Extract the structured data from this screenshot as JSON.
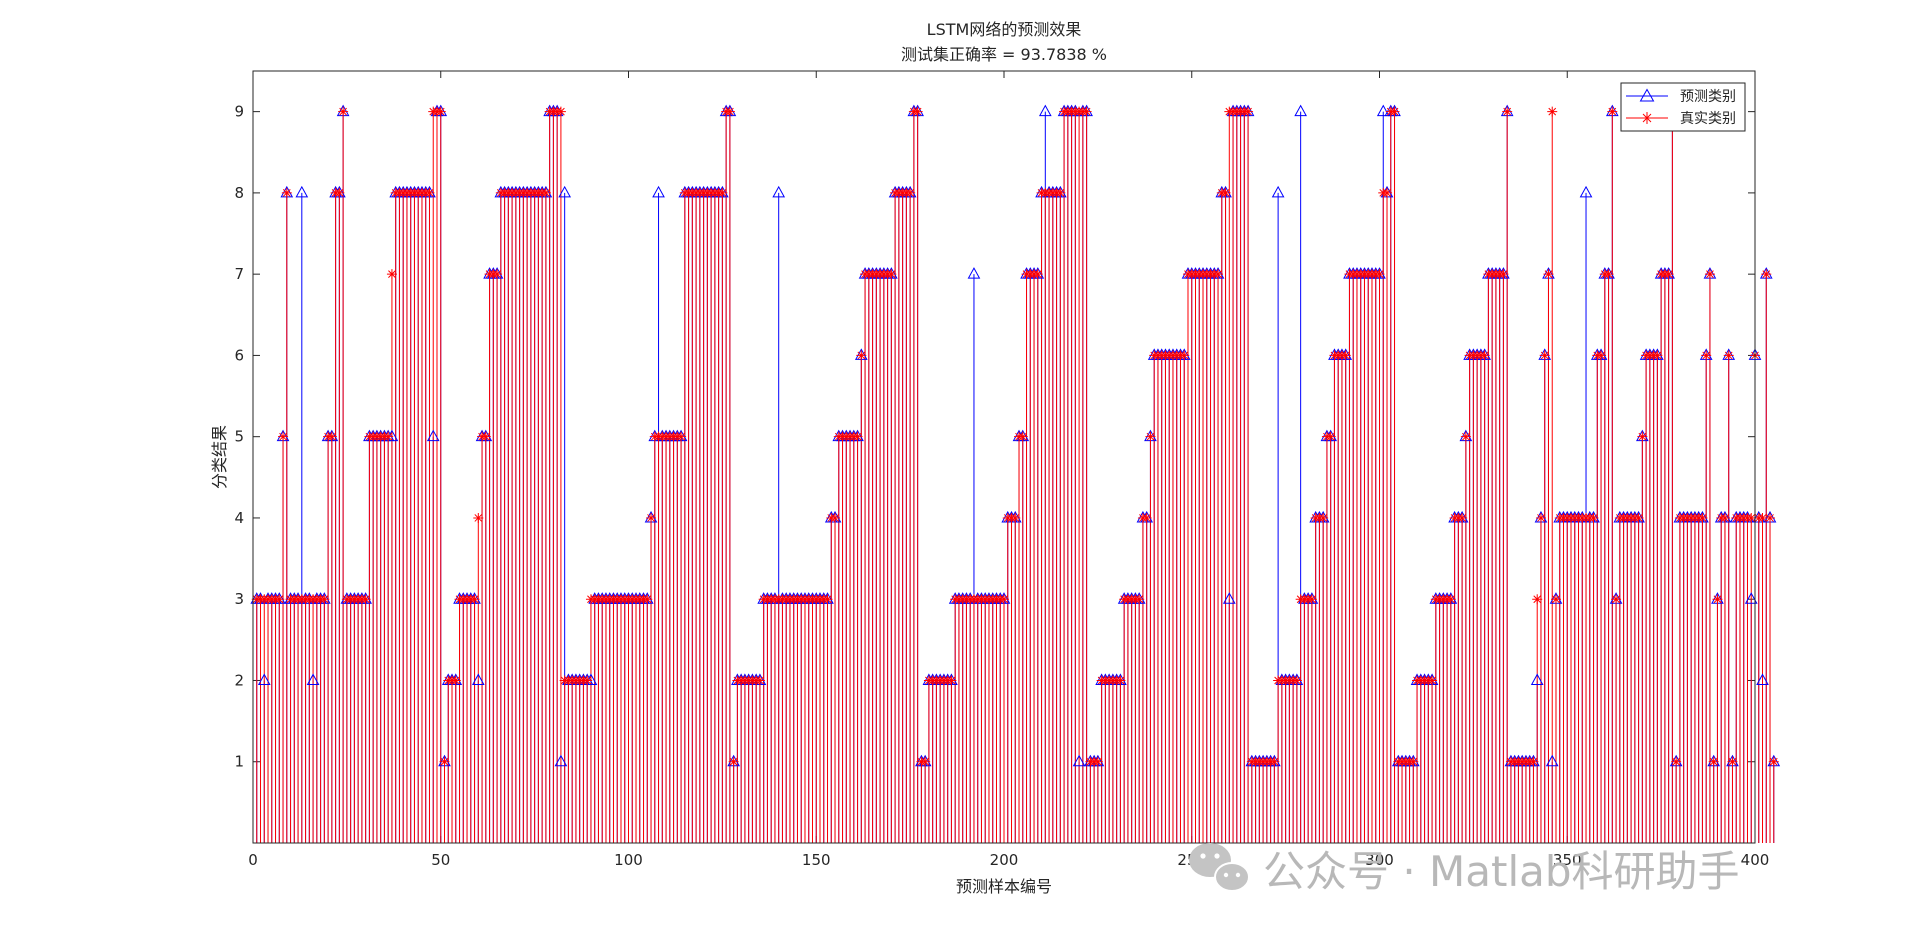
{
  "chart_data": {
    "type": "stem",
    "title": "LSTM网络的预测效果",
    "subtitle": "测试集正确率 = 93.7838 %",
    "xlabel": "预测样本编号",
    "ylabel": "分类结果",
    "xlim": [
      0,
      400
    ],
    "ylim": [
      0,
      9.5
    ],
    "stem_baseline": 0,
    "x_ticks": [
      0,
      50,
      100,
      150,
      200,
      250,
      300,
      350,
      400
    ],
    "y_ticks": [
      1,
      2,
      3,
      4,
      5,
      6,
      7,
      8,
      9
    ],
    "grid": false,
    "legend_position": "top-right",
    "series": [
      {
        "name": "预测类别",
        "marker": "triangle",
        "color": "#0000ff",
        "values": "3,3,2,3,3,3,3,5,8,3,3,3,8,3,3,2,3,3,3,5,5,8,8,9,3,3,3,3,3,3,5,5,5,5,5,5,5,8,8,8,8,8,8,8,8,8,8,5,9,9,1,2,2,2,3,3,3,3,3,2,5,5,7,7,7,8,8,8,8,8,8,8,8,8,8,8,8,8,9,9,9,1,8,2,2,2,2,2,2,2,3,3,3,3,3,3,3,3,3,3,3,3,3,3,3,4,5,8,5,5,5,5,5,5,8,8,8,8,8,8,8,8,8,8,8,9,9,1,2,2,2,2,2,2,2,3,3,3,3,8,3,3,3,3,3,3,3,3,3,3,3,3,3,4,4,5,5,5,5,5,5,6,7,7,7,7,7,7,7,7,8,8,8,8,8,9,9,1,1,2,2,2,2,2,2,2,3,3,3,3,3,7,3,3,3,3,3,3,3,3,4,4,4,5,5,7,7,7,7,8,9,8,8,8,8,9,9,9,9,1,9,9,1,1,1,2,2,2,2,2,2,3,3,3,3,3,4,4,5,6,6,6,6,6,6,6,6,6,7,7,7,7,7,7,7,7,7,8,8,3,9,9,9,9,9,1,1,1,1,1,1,1,8,2,2,2,2,2,9,3,3,3,4,4,4,5,5,6,6,6,6,7,7,7,7,7,7,7,7,7,9,8,9,9,1,1,1,1,1,2,2,2,2,2,3,3,3,3,3,4,4,4,5,6,6,6,6,6,7,7,7,7,7,9,1,1,1,1,1,1,1,2,4,6,7,1,3,4,4,4,4,4,4,4,8,4,4,6,6,7,7,9,3,4,4,4,4,4,4,5,6,6,6,6,7,7,7,9,1,4,4,4,4,4,4,4,6,7,1,3,4,4,6,1,4,4,4,4,3,6,4,2,7,4,1"
      },
      {
        "name": "真实类别",
        "marker": "asterisk",
        "color": "#ff0000",
        "values": "3,3,3,3,3,3,3,5,8,3,3,3,3,3,3,3,3,3,3,5,5,8,8,9,3,3,3,3,3,3,5,5,5,5,5,5,7,8,8,8,8,8,8,8,8,8,8,9,9,9,1,2,2,2,3,3,3,3,3,4,5,5,7,7,7,8,8,8,8,8,8,8,8,8,8,8,8,8,9,9,9,9,2,2,2,2,2,2,2,3,3,3,3,3,3,3,3,3,3,3,3,3,3,3,3,4,5,5,5,5,5,5,5,5,8,8,8,8,8,8,8,8,8,8,8,9,9,1,2,2,2,2,2,2,2,3,3,3,3,3,3,3,3,3,3,3,3,3,3,3,3,3,3,4,4,5,5,5,5,5,5,6,7,7,7,7,7,7,7,7,8,8,8,8,8,9,9,1,1,2,2,2,2,2,2,2,3,3,3,3,3,3,3,3,3,3,3,3,3,3,4,4,4,5,5,7,7,7,7,8,8,8,8,8,8,9,9,9,9,9,9,9,1,1,1,2,2,2,2,2,2,3,3,3,3,3,4,4,5,6,6,6,6,6,6,6,6,6,7,7,7,7,7,7,7,7,7,8,8,9,9,9,9,9,9,1,1,1,1,1,1,1,2,2,2,2,2,2,3,3,3,3,4,4,4,5,5,6,6,6,6,7,7,7,7,7,7,7,7,7,8,8,9,9,1,1,1,1,1,2,2,2,2,2,3,3,3,3,3,4,4,4,5,6,6,6,6,6,7,7,7,7,7,9,1,1,1,1,1,1,1,3,4,6,7,9,3,4,4,4,4,4,4,4,4,4,4,6,6,7,7,9,3,4,4,4,4,4,4,5,6,6,6,6,7,7,7,9,1,4,4,4,4,4,4,4,6,7,1,3,4,4,6,1,4,4,4,4,4,6,4,4,7,4,1"
      }
    ]
  },
  "watermark": {
    "text": "公众号 · Matlab科研助手",
    "icon": "wechat-icon"
  }
}
